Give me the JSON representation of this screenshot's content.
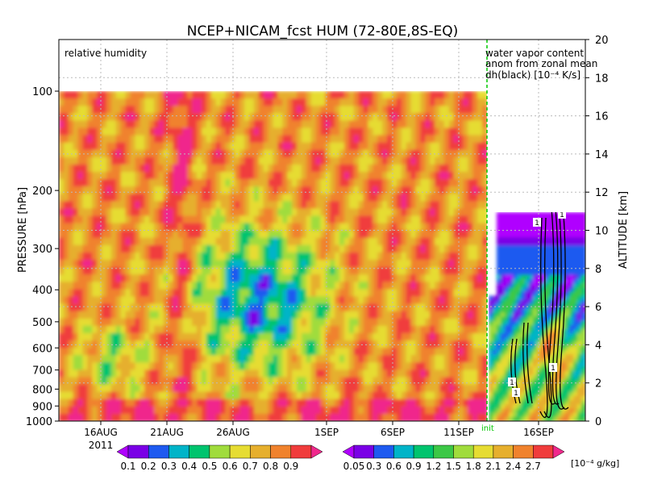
{
  "chart_data": [
    {
      "type": "heatmap",
      "title": "NCEP+NICAM_fcst HUM (72-80E,8S-EQ)",
      "panel_label": "relative humidity",
      "ylabel": "PRESSURE [hPa]",
      "y2label": "ALTITUDE [km]",
      "ylim_hpa": [
        1000,
        100
      ],
      "y_scale": "log-pressure",
      "y_ticks_hpa": [
        "100",
        "200",
        "300",
        "400",
        "500",
        "600",
        "700",
        "800",
        "900",
        "1000"
      ],
      "y2_ticks_km": [
        "0",
        "2",
        "4",
        "6",
        "8",
        "10",
        "12",
        "14",
        "16",
        "18",
        "20"
      ],
      "x_ticks": [
        "16AUG",
        "21AUG",
        "26AUG",
        "1SEP",
        "6SEP",
        "11SEP",
        "16SEP"
      ],
      "x_year": "2011",
      "init_marker": "init",
      "grid": true,
      "colorbar": {
        "levels": [
          "0.1",
          "0.2",
          "0.3",
          "0.4",
          "0.5",
          "0.6",
          "0.7",
          "0.8",
          "0.9"
        ],
        "colors": [
          "#b000ff",
          "#7a00e6",
          "#1e5af0",
          "#00b4c8",
          "#00c46e",
          "#a0dc3c",
          "#e6dc32",
          "#e6af2d",
          "#f0822d",
          "#f03c3c",
          "#f0288c"
        ]
      },
      "regimes": [
        {
          "period": "12AUG-27AUG",
          "pressure": "1000-100",
          "value_range": "0.6-0.9"
        },
        {
          "period": "27AUG-5SEP",
          "pressure": "600-300",
          "value_range": "0.1-0.5"
        },
        {
          "period": "5SEP-13SEP",
          "pressure": "1000-100",
          "value_range": "0.6-0.9"
        }
      ]
    },
    {
      "type": "heatmap",
      "panel_label": [
        "water vapor content",
        "anom from zonal mean",
        "dh(black) [10⁻⁴ K/s]"
      ],
      "contour_label": "1",
      "colorbar": {
        "levels": [
          "0.05",
          "0.3",
          "0.6",
          "0.9",
          "1.2",
          "1.5",
          "1.8",
          "2.1",
          "2.4",
          "2.7"
        ],
        "unit": "[10⁻⁴ g/kg]",
        "colors": [
          "#b000ff",
          "#7a00e6",
          "#1e5af0",
          "#00b4c8",
          "#00c46e",
          "#3cc846",
          "#a0dc3c",
          "#e6dc32",
          "#e6af2d",
          "#f0822d",
          "#f03c3c",
          "#f0288c"
        ]
      }
    }
  ],
  "colors": {
    "grid": "#bbbbbb",
    "init_line": "#00c800",
    "contour": "#000000"
  }
}
